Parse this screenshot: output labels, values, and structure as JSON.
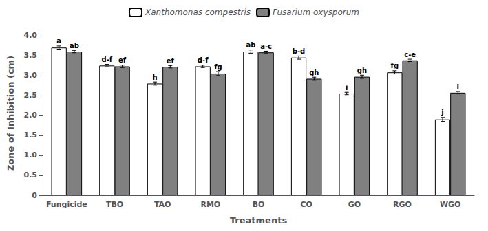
{
  "chart_data": {
    "type": "bar",
    "xlabel": "Treatments",
    "ylabel": "Zone of Inhibition (cm)",
    "categories": [
      "Fungicide",
      "TBO",
      "TAO",
      "RMO",
      "BO",
      "CO",
      "GO",
      "RGO",
      "WGO"
    ],
    "series": [
      {
        "name": "Xanthomonas compestris",
        "color": "#ffffff",
        "values": [
          3.7,
          3.25,
          2.8,
          3.23,
          3.6,
          3.45,
          2.55,
          3.08,
          1.9
        ],
        "errors": [
          0.04,
          0.03,
          0.04,
          0.03,
          0.04,
          0.04,
          0.03,
          0.04,
          0.05
        ],
        "annotations": [
          "a",
          "d-f",
          "h",
          "d-f",
          "ab",
          "b-d",
          "i",
          "fg",
          "j"
        ]
      },
      {
        "name": "Fusarium oxysporum",
        "color": "#808080",
        "values": [
          3.6,
          3.23,
          3.22,
          3.05,
          3.58,
          2.92,
          2.97,
          3.38,
          2.57
        ],
        "errors": [
          0.03,
          0.03,
          0.03,
          0.05,
          0.03,
          0.04,
          0.04,
          0.03,
          0.03
        ],
        "annotations": [
          "ab",
          "ef",
          "ef",
          "fg",
          "a-c",
          "gh",
          "gh",
          "c-e",
          "i"
        ]
      }
    ],
    "ylim": [
      0,
      4.1
    ],
    "yticks": [
      0,
      0.5,
      {
        "value": 1,
        "label": "1.0"
      },
      1.5,
      {
        "value": 2,
        "label": "2.0"
      },
      2.5,
      {
        "value": 3,
        "label": "3.0"
      },
      3.5,
      {
        "value": 4,
        "label": "4.0"
      }
    ],
    "grid": false,
    "legend": "top"
  }
}
